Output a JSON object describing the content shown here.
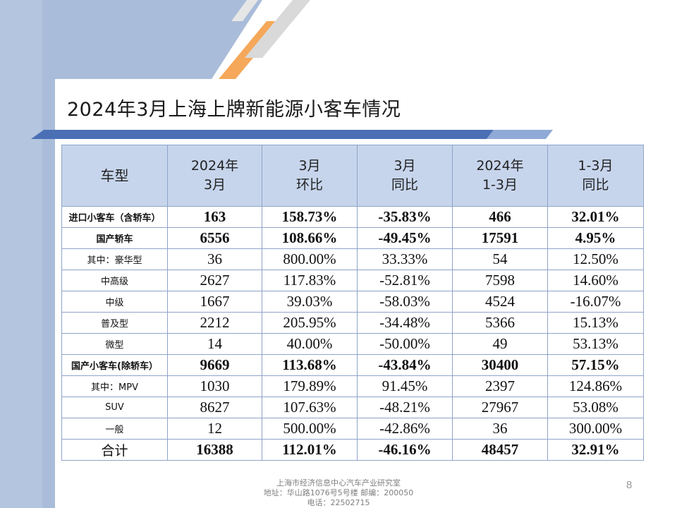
{
  "slide": {
    "title": "2024年3月上海上牌新能源小客车情况",
    "page_number": "8",
    "colors": {
      "band_blue": "#a9bcd9",
      "stripe_orange": "#f5a85a",
      "stripe_gray": "#d9d9d9",
      "header_fill": "#c7d5ec",
      "underline_blue": "#5b7fbf"
    }
  },
  "table": {
    "headers": [
      {
        "line1": "车型",
        "line2": ""
      },
      {
        "line1": "2024年",
        "line2": "3月"
      },
      {
        "line1": "3月",
        "line2": "环比"
      },
      {
        "line1": "3月",
        "line2": "同比"
      },
      {
        "line1": "2024年",
        "line2": "1-3月"
      },
      {
        "line1": "1-3月",
        "line2": "同比"
      }
    ],
    "rows": [
      {
        "style": "bold",
        "cells": [
          "进口小客车（含轿车）",
          "163",
          "158.73%",
          "-35.83%",
          "466",
          "32.01%"
        ]
      },
      {
        "style": "bold",
        "cells": [
          "国产轿车",
          "6556",
          "108.66%",
          "-49.45%",
          "17591",
          "4.95%"
        ]
      },
      {
        "style": "normal",
        "cells": [
          "其中：豪华型",
          "36",
          "800.00%",
          "33.33%",
          "54",
          "12.50%"
        ]
      },
      {
        "style": "normal",
        "cells": [
          "中高级",
          "2627",
          "117.83%",
          "-52.81%",
          "7598",
          "14.60%"
        ]
      },
      {
        "style": "normal",
        "cells": [
          "中级",
          "1667",
          "39.03%",
          "-58.03%",
          "4524",
          "-16.07%"
        ]
      },
      {
        "style": "normal",
        "cells": [
          "普及型",
          "2212",
          "205.95%",
          "-34.48%",
          "5366",
          "15.13%"
        ]
      },
      {
        "style": "normal",
        "cells": [
          "微型",
          "14",
          "40.00%",
          "-50.00%",
          "49",
          "53.13%"
        ]
      },
      {
        "style": "bold",
        "cells": [
          "国产小客车(除轿车）",
          "9669",
          "113.68%",
          "-43.84%",
          "30400",
          "57.15%"
        ]
      },
      {
        "style": "normal",
        "cells": [
          "其中：MPV",
          "1030",
          "179.89%",
          "91.45%",
          "2397",
          "124.86%"
        ]
      },
      {
        "style": "normal",
        "cells": [
          "SUV",
          "8627",
          "107.63%",
          "-48.21%",
          "27967",
          "53.08%"
        ]
      },
      {
        "style": "normal",
        "cells": [
          "一般",
          "12",
          "500.00%",
          "-42.86%",
          "36",
          "300.00%"
        ]
      },
      {
        "style": "total",
        "cells": [
          "合计",
          "16388",
          "112.01%",
          "-46.16%",
          "48457",
          "32.91%"
        ]
      }
    ]
  },
  "footer": {
    "line1": "上海市经济信息中心汽车产业研究室",
    "line2": "地址：华山路1076号5号楼    邮编：200050",
    "line3": "电话：22502715"
  }
}
